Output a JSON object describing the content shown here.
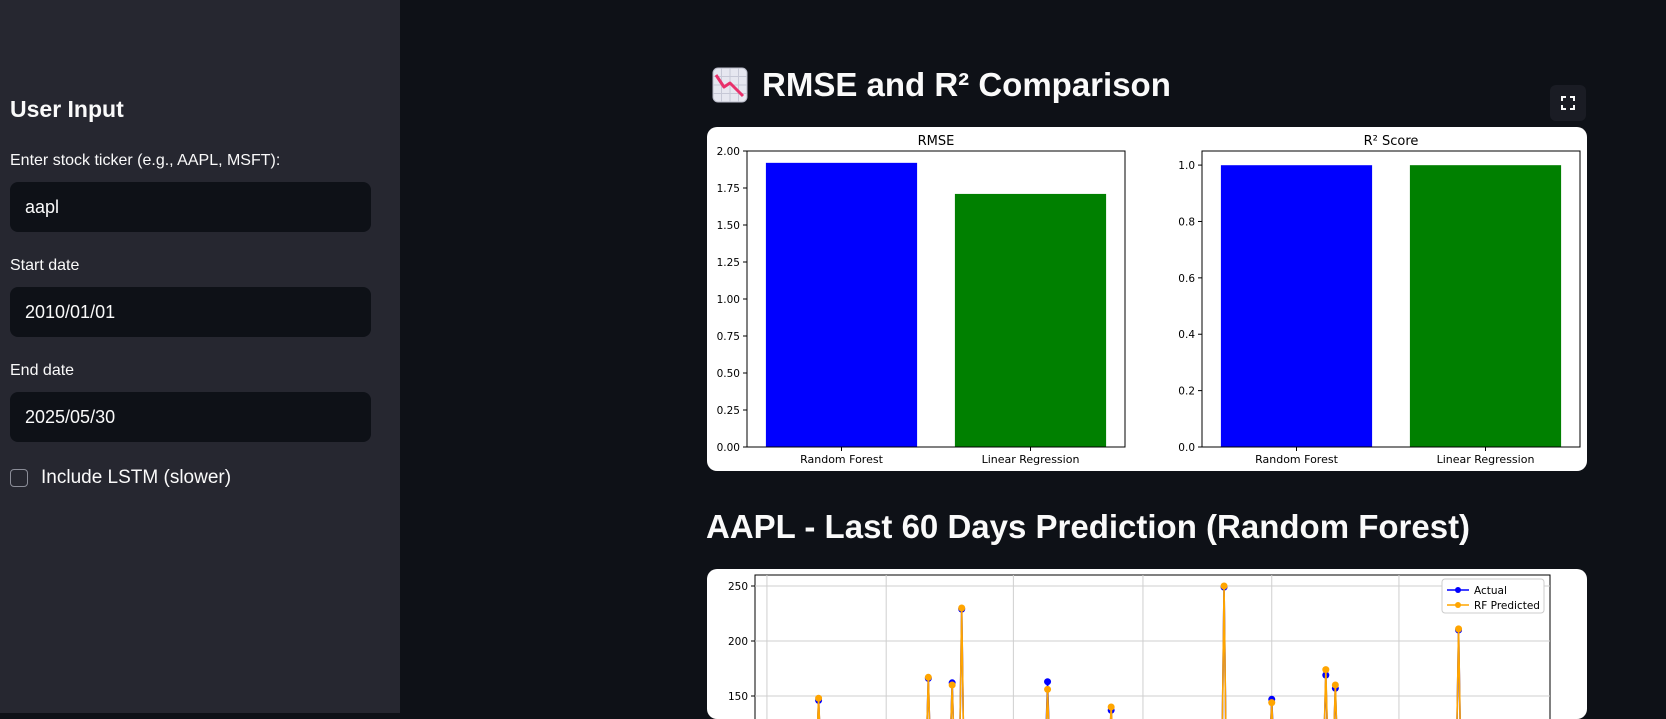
{
  "sidebar": {
    "heading": "User Input",
    "ticker_label": "Enter stock ticker (e.g., AAPL, MSFT):",
    "ticker_value": "aapl",
    "start_label": "Start date",
    "start_value": "2010/01/01",
    "end_label": "End date",
    "end_value": "2025/05/30",
    "lstm_label": "Include LSTM (slower)",
    "lstm_checked": false
  },
  "main": {
    "comparison_title": "RMSE and R² Comparison",
    "prediction_title": "AAPL - Last 60 Days Prediction (Random Forest)",
    "icons": {
      "comparison_icon": "chart-decreasing-icon",
      "fullscreen_icon": "fullscreen-icon"
    }
  },
  "chart_data": [
    {
      "type": "bar",
      "title": "RMSE",
      "categories": [
        "Random Forest",
        "Linear Regression"
      ],
      "values": [
        1.92,
        1.71
      ],
      "colors": [
        "#0000ff",
        "#008000"
      ],
      "ylim": [
        0,
        2.0
      ],
      "yticks": [
        "0.00",
        "0.25",
        "0.50",
        "0.75",
        "1.00",
        "1.25",
        "1.50",
        "1.75",
        "2.00"
      ]
    },
    {
      "type": "bar",
      "title": "R² Score",
      "categories": [
        "Random Forest",
        "Linear Regression"
      ],
      "values": [
        0.9996,
        0.9997
      ],
      "colors": [
        "#0000ff",
        "#008000"
      ],
      "ylim": [
        0,
        1.05
      ],
      "yticks": [
        "0.0",
        "0.2",
        "0.4",
        "0.6",
        "0.8",
        "1.0"
      ]
    },
    {
      "type": "line",
      "yticks": [
        "150",
        "200",
        "250"
      ],
      "ylim": [
        120,
        260
      ],
      "legend": "top-right",
      "grid": true,
      "series": [
        {
          "name": "Actual",
          "color": "#0000ff",
          "points": [
            [
              0.08,
              146
            ],
            [
              0.218,
              166
            ],
            [
              0.248,
              162
            ],
            [
              0.26,
              229
            ],
            [
              0.368,
              163
            ],
            [
              0.448,
              137
            ],
            [
              0.59,
              249
            ],
            [
              0.65,
              147
            ],
            [
              0.718,
              169
            ],
            [
              0.73,
              157
            ],
            [
              0.885,
              210
            ]
          ]
        },
        {
          "name": "RF Predicted",
          "color": "#ffa500",
          "points": [
            [
              0.08,
              148
            ],
            [
              0.218,
              167
            ],
            [
              0.248,
              160
            ],
            [
              0.26,
              230
            ],
            [
              0.368,
              156
            ],
            [
              0.448,
              140
            ],
            [
              0.59,
              250
            ],
            [
              0.65,
              144
            ],
            [
              0.718,
              174
            ],
            [
              0.73,
              160
            ],
            [
              0.885,
              211
            ]
          ]
        }
      ]
    }
  ]
}
